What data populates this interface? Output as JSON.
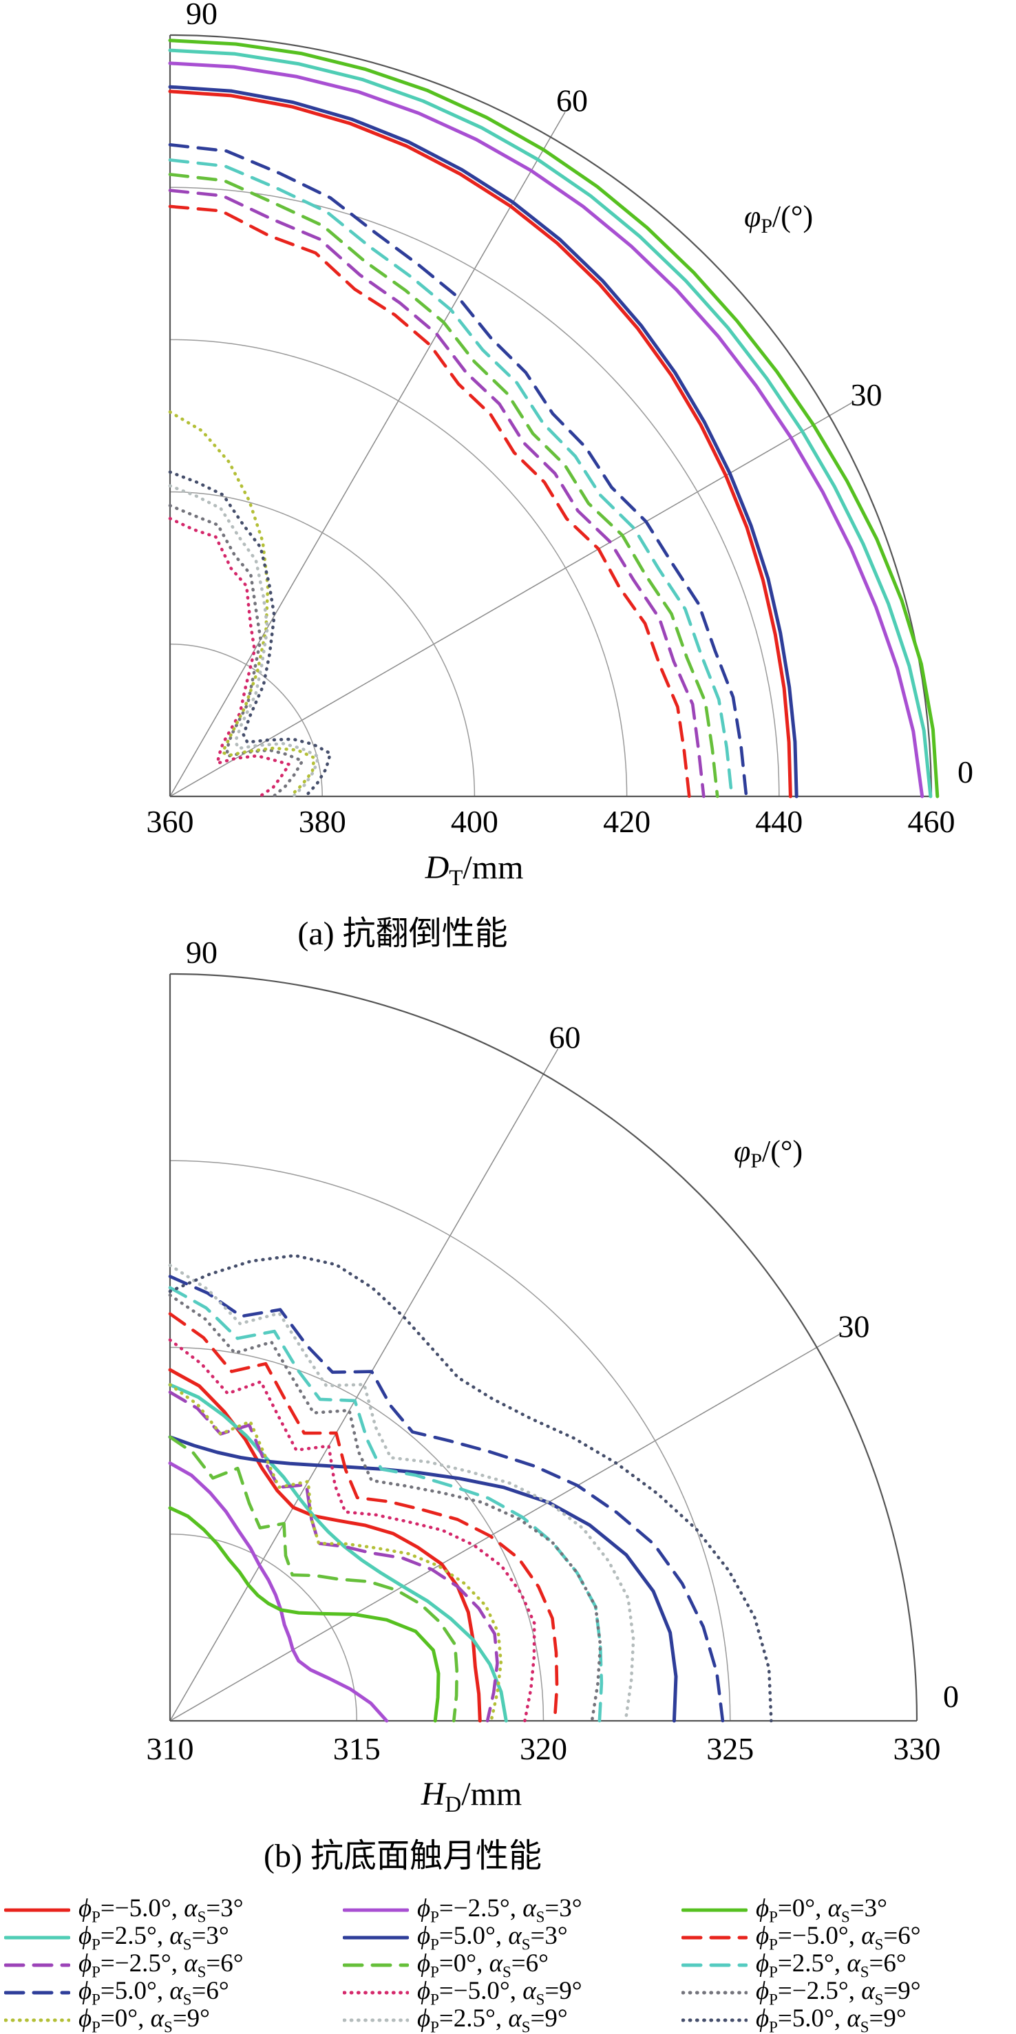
{
  "figure": {
    "captions": {
      "a": "(a) 抗翻倒性能",
      "b": "(b) 抗底面触月性能"
    }
  },
  "chart_data": [
    {
      "type": "line",
      "subtype": "polar-quarter",
      "title": "(a) 抗翻倒性能",
      "angular_axis": {
        "label_sym": "φ",
        "label_sub": "P",
        "label_unit": "/(°)",
        "ticks": [
          0,
          30,
          60,
          90
        ],
        "range": [
          0,
          90
        ]
      },
      "radial_axis": {
        "label_sym": "D",
        "label_sub": "T",
        "label_unit": "/mm",
        "ticks": [
          360,
          380,
          400,
          420,
          440,
          460
        ],
        "range": [
          360,
          460
        ]
      },
      "grid": true,
      "angles_deg": [
        90,
        85,
        80,
        75,
        70,
        65,
        60,
        55,
        50,
        45,
        40,
        35,
        30,
        25,
        20,
        15,
        10,
        5,
        0
      ],
      "series": [
        {
          "name": "ϕP=−5.0°, αS=3°",
          "color": "#e8231c",
          "dash": "solid",
          "values": [
            452.6,
            452.4,
            452.0,
            451.5,
            450.9,
            450.2,
            449.5,
            448.7,
            447.8,
            446.9,
            446.0,
            445.1,
            444.3,
            443.6,
            442.9,
            442.3,
            441.9,
            441.6,
            441.5
          ]
        },
        {
          "name": "ϕP=−2.5°, αS=3°",
          "color": "#a84fd2",
          "dash": "solid",
          "values": [
            456.3,
            456.2,
            456.0,
            455.8,
            455.5,
            455.2,
            454.9,
            454.6,
            454.3,
            454.1,
            454.0,
            454.0,
            454.2,
            454.6,
            455.2,
            456.0,
            457.0,
            458.0,
            458.8
          ]
        },
        {
          "name": "ϕP=0°, αS=3°",
          "color": "#56c020",
          "dash": "solid",
          "values": [
            459.3,
            459.2,
            459.1,
            458.9,
            458.7,
            458.4,
            458.1,
            457.8,
            457.5,
            457.3,
            457.2,
            457.3,
            457.6,
            458.1,
            458.8,
            459.5,
            460.2,
            460.6,
            460.8
          ]
        },
        {
          "name": "ϕP=2.5°, αS=3°",
          "color": "#4fcdb5",
          "dash": "solid",
          "values": [
            458.0,
            457.9,
            457.7,
            457.5,
            457.2,
            456.9,
            456.6,
            456.3,
            456.0,
            455.8,
            455.7,
            455.7,
            455.9,
            456.3,
            456.9,
            457.7,
            458.6,
            459.4,
            459.9
          ]
        },
        {
          "name": "ϕP=5.0°, αS=3°",
          "color": "#2e3d99",
          "dash": "solid",
          "values": [
            453.2,
            453.0,
            452.6,
            452.1,
            451.5,
            450.8,
            450.1,
            449.3,
            448.4,
            447.5,
            446.6,
            445.7,
            444.9,
            444.2,
            443.6,
            443.0,
            442.6,
            442.4,
            442.3
          ]
        },
        {
          "name": "ϕP=−5.0°, αS=6°",
          "color": "#e8231c",
          "dash": "dashed",
          "values": [
            437.5,
            437.2,
            434.8,
            433.9,
            430.9,
            429.8,
            428.4,
            426.1,
            425.5,
            423.9,
            424.2,
            423.6,
            425.0,
            425.1,
            426.4,
            426.6,
            427.7,
            427.8,
            428.2
          ]
        },
        {
          "name": "ϕP=−2.5°, αS=6°",
          "color": "#9c44b8",
          "dash": "dashed",
          "values": [
            439.6,
            439.2,
            437.0,
            435.8,
            432.9,
            431.5,
            430.1,
            427.9,
            427.3,
            425.7,
            426.0,
            425.4,
            426.8,
            427.2,
            428.4,
            428.5,
            429.7,
            429.7,
            430.1
          ]
        },
        {
          "name": "ϕP=0°, αS=6°",
          "color": "#66bf3a",
          "dash": "dashed",
          "values": [
            441.7,
            441.2,
            439.1,
            437.6,
            434.8,
            433.3,
            431.9,
            429.7,
            429.0,
            427.4,
            427.7,
            427.1,
            428.6,
            428.9,
            430.1,
            430.3,
            431.4,
            431.5,
            431.9
          ]
        },
        {
          "name": "ϕP=2.5°, αS=6°",
          "color": "#55cbc0",
          "dash": "dashed",
          "values": [
            443.6,
            443.1,
            441.1,
            439.5,
            436.8,
            435.2,
            433.8,
            431.6,
            430.9,
            429.3,
            429.5,
            429.0,
            430.4,
            430.8,
            432.0,
            432.2,
            433.2,
            433.4,
            433.8
          ]
        },
        {
          "name": "ϕP=5.0°, αS=6°",
          "color": "#2e3d99",
          "dash": "dashed",
          "values": [
            445.6,
            445.1,
            443.1,
            441.4,
            438.8,
            437.1,
            435.7,
            433.5,
            432.7,
            431.1,
            431.3,
            430.8,
            432.2,
            432.7,
            433.9,
            434.1,
            435.1,
            435.3,
            435.7
          ]
        },
        {
          "name": "ϕP=−5.0°, αS=9°",
          "color": "#d4276a",
          "dash": "dotted",
          "values": [
            396.5,
            395.2,
            394.6,
            391.0,
            389.4,
            385.0,
            382.2,
            377.2,
            374.3,
            369.8,
            368.4,
            367.6,
            370.0,
            372.6,
            374.2,
            376.2,
            374.8,
            373.6,
            371.8
          ]
        },
        {
          "name": "ϕP=−2.5°, αS=9°",
          "color": "#73737b",
          "dash": "dotted",
          "values": [
            398.2,
            397.0,
            396.2,
            392.8,
            391.0,
            386.8,
            383.8,
            379.0,
            375.9,
            371.4,
            369.8,
            369.2,
            371.6,
            374.4,
            376.2,
            378.0,
            376.6,
            375.2,
            373.6
          ]
        },
        {
          "name": "ϕP=0°, αS=9°",
          "color": "#b3bf36",
          "dash": "dotted",
          "values": [
            410.5,
            408.2,
            404.6,
            400.2,
            395.6,
            390.4,
            385.2,
            380.0,
            375.3,
            371.2,
            369.0,
            369.4,
            371.8,
            375.0,
            377.8,
            379.6,
            379.0,
            377.4,
            375.8
          ]
        },
        {
          "name": "ϕP=2.5°, αS=9°",
          "color": "#b4bcbc",
          "dash": "dotted",
          "values": [
            400.8,
            399.6,
            398.4,
            395.2,
            393.0,
            389.0,
            385.6,
            381.0,
            377.5,
            373.2,
            371.2,
            371.0,
            373.4,
            376.4,
            378.4,
            380.2,
            379.2,
            377.8,
            376.2
          ]
        },
        {
          "name": "ϕP=5.0°, αS=9°",
          "color": "#454e6b",
          "dash": "dotted",
          "values": [
            402.6,
            401.4,
            400.2,
            397.0,
            394.8,
            390.8,
            387.4,
            382.8,
            379.1,
            374.8,
            372.6,
            372.4,
            374.8,
            377.8,
            380.0,
            381.8,
            380.8,
            379.4,
            377.8
          ]
        }
      ]
    },
    {
      "type": "line",
      "subtype": "polar-quarter",
      "title": "(b) 抗底面触月性能",
      "angular_axis": {
        "label_sym": "φ",
        "label_sub": "P",
        "label_unit": "/(°)",
        "ticks": [
          0,
          30,
          60,
          90
        ],
        "range": [
          0,
          90
        ]
      },
      "radial_axis": {
        "label_sym": "H",
        "label_sub": "D",
        "label_unit": "/mm",
        "ticks": [
          310,
          315,
          320,
          325,
          330
        ],
        "range": [
          310,
          330
        ]
      },
      "grid": true,
      "angles_deg": [
        90,
        85,
        80,
        75,
        70,
        65,
        60,
        55,
        50,
        45,
        40,
        35,
        30,
        25,
        20,
        15,
        10,
        5,
        0
      ],
      "series": [
        {
          "name": "ϕP=−5.0°, αS=3°",
          "color": "#e8231c",
          "dash": "solid",
          "values": [
            319.4,
            319.0,
            318.4,
            317.8,
            317.2,
            316.8,
            316.6,
            316.7,
            317.0,
            317.4,
            317.8,
            318.1,
            318.4,
            318.5,
            318.5,
            318.4,
            318.3,
            318.3,
            318.3
          ]
        },
        {
          "name": "ϕP=−2.5°, αS=3°",
          "color": "#a84fd2",
          "dash": "solid",
          "values": [
            316.9,
            316.6,
            316.2,
            315.8,
            315.4,
            315.1,
            314.8,
            314.6,
            314.4,
            314.2,
            314.0,
            313.9,
            313.8,
            313.8,
            314.0,
            314.4,
            314.9,
            315.4,
            315.8
          ]
        },
        {
          "name": "ϕP=0°, αS=3°",
          "color": "#56c020",
          "dash": "solid",
          "values": [
            315.7,
            315.5,
            315.2,
            314.9,
            314.6,
            314.4,
            314.2,
            314.1,
            314.1,
            314.2,
            314.5,
            315.0,
            315.7,
            316.4,
            317.0,
            317.3,
            317.3,
            317.2,
            317.1
          ]
        },
        {
          "name": "ϕP=2.5°, αS=3°",
          "color": "#4fcdb5",
          "dash": "solid",
          "values": [
            319.0,
            318.7,
            318.3,
            317.9,
            317.5,
            317.2,
            316.9,
            316.7,
            316.6,
            316.6,
            316.7,
            316.9,
            317.2,
            317.6,
            318.0,
            318.4,
            318.7,
            318.9,
            319.0
          ]
        },
        {
          "name": "ϕP=5.0°, αS=3°",
          "color": "#2e3d99",
          "dash": "solid",
          "values": [
            317.6,
            317.4,
            317.3,
            317.3,
            317.4,
            317.6,
            317.9,
            318.3,
            318.8,
            319.4,
            320.1,
            320.9,
            321.7,
            322.4,
            323.0,
            323.4,
            323.6,
            323.6,
            323.5
          ]
        },
        {
          "name": "ϕP=−5.0°, αS=6°",
          "color": "#e8231c",
          "dash": "dashed",
          "values": [
            320.9,
            320.3,
            319.5,
            319.9,
            319.1,
            318.5,
            318.9,
            318.2,
            317.8,
            318.3,
            318.8,
            319.4,
            319.9,
            320.3,
            320.5,
            320.6,
            320.5,
            320.4,
            320.3
          ]
        },
        {
          "name": "ϕP=−2.5°, αS=6°",
          "color": "#9c44b8",
          "dash": "dashed",
          "values": [
            318.8,
            318.4,
            317.8,
            318.2,
            317.4,
            316.9,
            317.3,
            316.6,
            316.2,
            316.6,
            317.0,
            317.6,
            318.1,
            318.5,
            318.8,
            319.0,
            318.9,
            318.7,
            318.5
          ]
        },
        {
          "name": "ϕP=0°, αS=6°",
          "color": "#66bf3a",
          "dash": "dashed",
          "values": [
            317.6,
            317.2,
            316.6,
            317.0,
            316.2,
            315.7,
            316.1,
            315.4,
            315.1,
            315.5,
            315.9,
            316.5,
            317.0,
            317.4,
            317.7,
            317.9,
            317.8,
            317.7,
            317.6
          ]
        },
        {
          "name": "ϕP=2.5°, αS=6°",
          "color": "#55cbc0",
          "dash": "dashed",
          "values": [
            321.6,
            321.1,
            320.4,
            320.8,
            320.0,
            319.5,
            319.9,
            319.2,
            318.8,
            319.3,
            319.8,
            320.4,
            320.9,
            321.3,
            321.6,
            321.8,
            321.7,
            321.6,
            321.5
          ]
        },
        {
          "name": "ϕP=5.0°, αS=6°",
          "color": "#2e3d99",
          "dash": "dashed",
          "values": [
            321.9,
            321.5,
            321.0,
            321.4,
            320.7,
            320.3,
            320.8,
            320.3,
            320.1,
            320.6,
            321.2,
            321.9,
            322.6,
            323.2,
            323.8,
            324.2,
            324.5,
            324.7,
            324.8
          ]
        },
        {
          "name": "ϕP=−5.0°, αS=9°",
          "color": "#d4276a",
          "dash": "dotted",
          "values": [
            320.2,
            319.6,
            318.9,
            319.4,
            318.6,
            318.0,
            318.5,
            317.7,
            317.3,
            317.8,
            318.3,
            318.9,
            319.4,
            319.8,
            320.0,
            320.1,
            319.9,
            319.7,
            319.5
          ]
        },
        {
          "name": "ϕP=−2.5°, αS=9°",
          "color": "#73737b",
          "dash": "dotted",
          "values": [
            321.4,
            320.8,
            320.0,
            320.5,
            319.7,
            319.1,
            319.6,
            318.8,
            318.4,
            318.9,
            319.5,
            320.2,
            320.8,
            321.3,
            321.6,
            321.8,
            321.7,
            321.5,
            321.3
          ]
        },
        {
          "name": "ϕP=0°, αS=9°",
          "color": "#b3bf36",
          "dash": "dotted",
          "values": [
            319.0,
            318.5,
            317.8,
            318.3,
            317.5,
            316.9,
            317.4,
            316.6,
            316.2,
            316.7,
            317.2,
            317.8,
            318.3,
            318.7,
            319.0,
            319.1,
            319.0,
            318.8,
            318.6
          ]
        },
        {
          "name": "ϕP=2.5°, αS=9°",
          "color": "#b4bcbc",
          "dash": "dotted",
          "values": [
            322.2,
            321.6,
            320.8,
            321.3,
            320.5,
            319.9,
            320.4,
            319.6,
            319.2,
            319.8,
            320.4,
            321.1,
            321.7,
            322.2,
            322.5,
            322.7,
            322.6,
            322.4,
            322.2
          ]
        },
        {
          "name": "ϕP=5.0°, αS=9°",
          "color": "#454e6b",
          "dash": "dotted",
          "values": [
            321.5,
            322.0,
            322.5,
            322.9,
            323.0,
            322.8,
            322.5,
            322.2,
            322.0,
            322.2,
            322.6,
            323.2,
            323.8,
            324.4,
            325.0,
            325.5,
            325.9,
            326.1,
            326.1
          ]
        }
      ]
    }
  ],
  "legend": {
    "symbols": {
      "phi": "ϕ",
      "phi_sub": "P",
      "alpha": "α",
      "alpha_sub": "S",
      "eq": "=",
      "sep": ", "
    },
    "items": [
      {
        "phi": "−5.0°",
        "alpha": "3°",
        "color": "#e8231c",
        "dash": "solid"
      },
      {
        "phi": "−2.5°",
        "alpha": "3°",
        "color": "#a84fd2",
        "dash": "solid"
      },
      {
        "phi": "0°",
        "alpha": "3°",
        "color": "#56c020",
        "dash": "solid"
      },
      {
        "phi": "2.5°",
        "alpha": "3°",
        "color": "#4fcdb5",
        "dash": "solid"
      },
      {
        "phi": "5.0°",
        "alpha": "3°",
        "color": "#2e3d99",
        "dash": "solid"
      },
      {
        "phi": "−5.0°",
        "alpha": "6°",
        "color": "#e8231c",
        "dash": "dashed"
      },
      {
        "phi": "−2.5°",
        "alpha": "6°",
        "color": "#9c44b8",
        "dash": "dashed"
      },
      {
        "phi": "0°",
        "alpha": "6°",
        "color": "#66bf3a",
        "dash": "dashed"
      },
      {
        "phi": "2.5°",
        "alpha": "6°",
        "color": "#55cbc0",
        "dash": "dashed"
      },
      {
        "phi": "5.0°",
        "alpha": "6°",
        "color": "#2e3d99",
        "dash": "dashed"
      },
      {
        "phi": "−5.0°",
        "alpha": "9°",
        "color": "#d4276a",
        "dash": "dotted"
      },
      {
        "phi": "−2.5°",
        "alpha": "9°",
        "color": "#73737b",
        "dash": "dotted"
      },
      {
        "phi": "0°",
        "alpha": "9°",
        "color": "#b3bf36",
        "dash": "dotted"
      },
      {
        "phi": "2.5°",
        "alpha": "9°",
        "color": "#b4bcbc",
        "dash": "dotted"
      },
      {
        "phi": "5.0°",
        "alpha": "9°",
        "color": "#454e6b",
        "dash": "dotted"
      }
    ]
  }
}
